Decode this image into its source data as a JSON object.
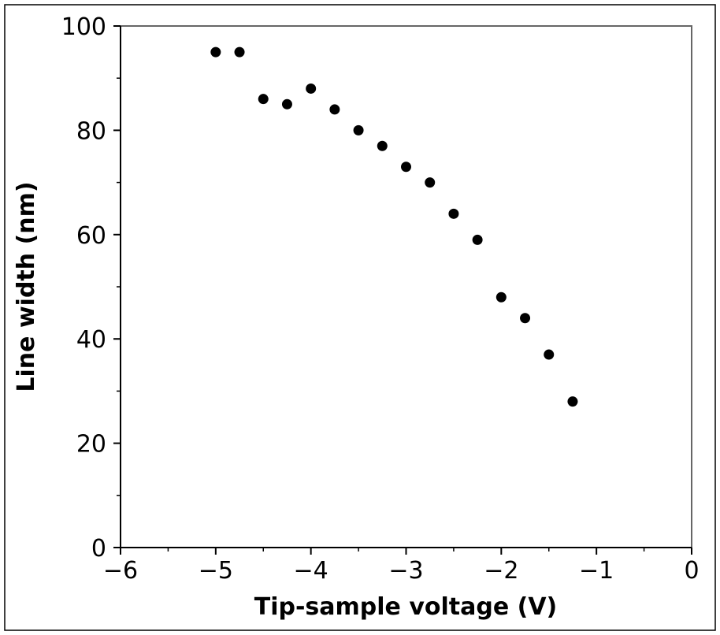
{
  "chart_data": {
    "type": "scatter",
    "title": "",
    "xlabel": "Tip-sample voltage (V)",
    "ylabel": "Line width (nm)",
    "xlim": [
      -6,
      0
    ],
    "ylim": [
      0,
      100
    ],
    "x_ticks": [
      -6,
      -5,
      -4,
      -3,
      -2,
      -1,
      0
    ],
    "x_tick_labels": [
      "−6",
      "−5",
      "−4",
      "−3",
      "−2",
      "−1",
      "0"
    ],
    "y_ticks": [
      0,
      20,
      40,
      60,
      80,
      100
    ],
    "y_tick_labels": [
      "0",
      "20",
      "40",
      "60",
      "80",
      "100"
    ],
    "grid": false,
    "legend": "none",
    "marker_color": "#000000",
    "series": [
      {
        "x": [
          -5.0,
          -4.75,
          -4.5,
          -4.25,
          -4.0,
          -3.75,
          -3.5,
          -3.25,
          -3.0,
          -2.75,
          -2.5,
          -2.25,
          -2.0,
          -1.75,
          -1.5,
          -1.25
        ],
        "y": [
          95,
          95,
          86,
          85,
          88,
          84,
          80,
          77,
          73,
          70,
          64,
          59,
          48,
          44,
          37,
          28
        ]
      }
    ]
  }
}
